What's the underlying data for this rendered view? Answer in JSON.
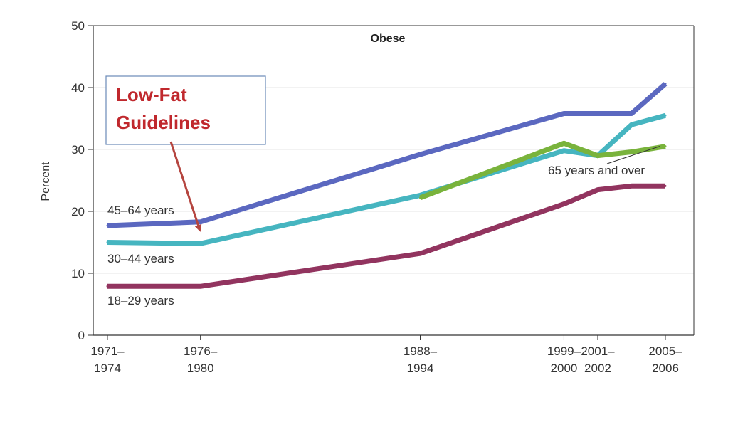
{
  "chart_data": {
    "type": "line",
    "title": "Obese",
    "ylabel": "Percent",
    "xlabel": "",
    "ylim": [
      0,
      50
    ],
    "yticks": [
      0,
      10,
      20,
      30,
      40,
      50
    ],
    "grid": true,
    "x": [
      1972.5,
      1978,
      1991,
      1999.5,
      2001.5,
      2003.5,
      2005.5
    ],
    "xtick_positions": [
      1972.5,
      1978,
      1991,
      1999.5,
      2001.5,
      2005.5
    ],
    "xtick_labels": [
      [
        "1971–",
        "1974"
      ],
      [
        "1976–",
        "1980"
      ],
      [
        "1988–",
        "1994"
      ],
      [
        "1999–",
        "2000"
      ],
      [
        "2001–",
        "2002"
      ],
      [
        "2005–",
        "2006"
      ]
    ],
    "series": [
      {
        "name": "45–64 years",
        "color": "#5b68c0",
        "x": [
          1972.5,
          1978,
          1991,
          1999.5,
          2001.5,
          2003.5,
          2005.5
        ],
        "values": [
          17.7,
          18.3,
          29.2,
          35.8,
          35.8,
          35.8,
          40.6
        ]
      },
      {
        "name": "30–44 years",
        "color": "#46b5c0",
        "x": [
          1972.5,
          1978,
          1991,
          1999.5,
          2001.5,
          2003.5,
          2005.5
        ],
        "values": [
          15.0,
          14.8,
          22.6,
          29.8,
          29.0,
          34.0,
          35.5
        ]
      },
      {
        "name": "65 years and over",
        "color": "#79b33c",
        "x": [
          1991,
          1999.5,
          2001.5,
          2003.5,
          2005.5
        ],
        "values": [
          22.2,
          31.0,
          29.0,
          29.6,
          30.5
        ]
      },
      {
        "name": "18–29 years",
        "color": "#92345f",
        "x": [
          1972.5,
          1978,
          1991,
          1999.5,
          2001.5,
          2003.5,
          2005.5
        ],
        "values": [
          7.9,
          7.9,
          13.2,
          21.2,
          23.5,
          24.1,
          24.1
        ]
      }
    ],
    "series_labels": [
      {
        "text": "45–64 years",
        "series": 0
      },
      {
        "text": "30–44 years",
        "series": 1
      },
      {
        "text": "18–29 years",
        "series": 3
      },
      {
        "text": "65 years and over",
        "series": 2
      }
    ],
    "annotation": {
      "text_lines": [
        "Low-Fat",
        "Guidelines"
      ],
      "text_color": "#c0282d",
      "box_border": "#6a8ab8",
      "arrow_color": "#b5453f",
      "points_to_x": 1978
    },
    "colors": {
      "axis": "#333333",
      "grid": "#e6e6e6",
      "text": "#333333"
    }
  }
}
